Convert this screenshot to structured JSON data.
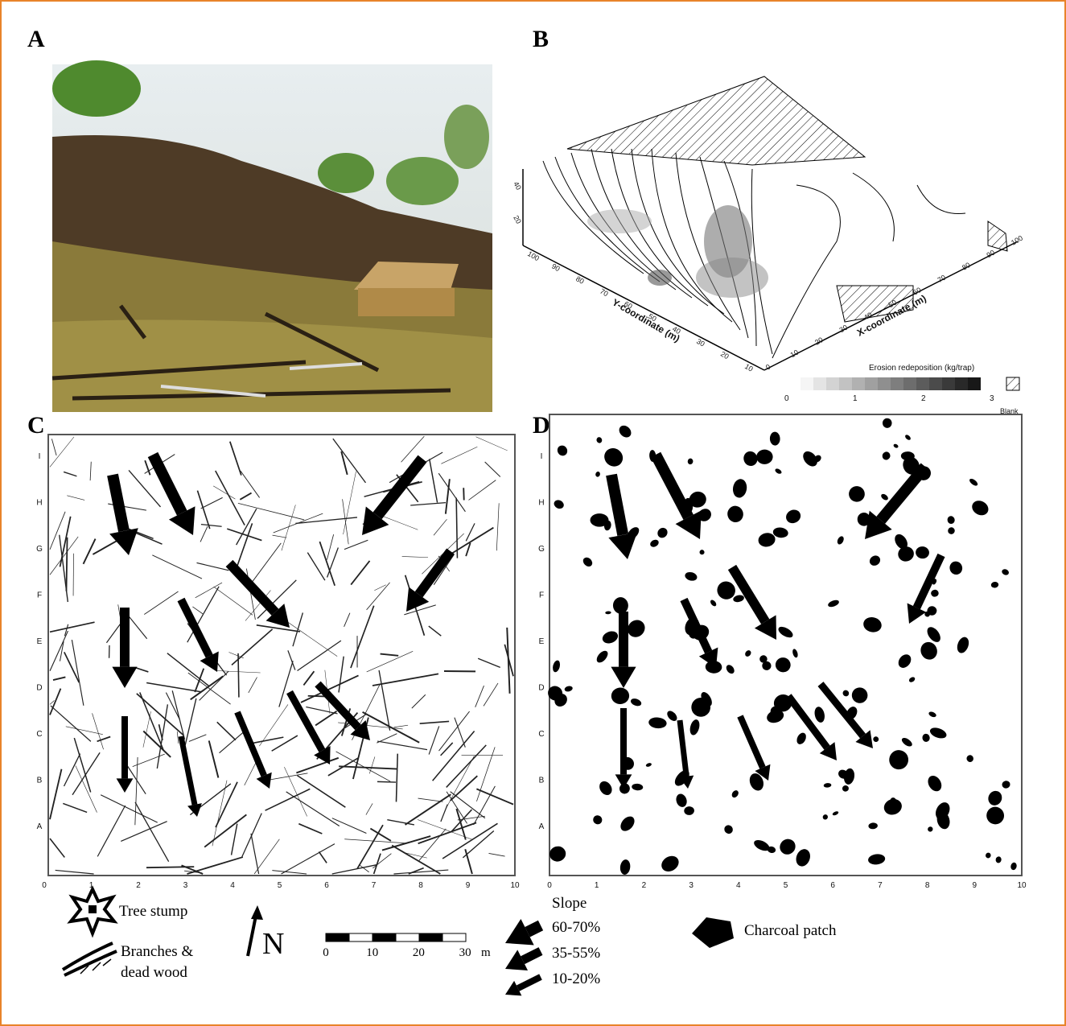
{
  "panel_labels": [
    "A",
    "B",
    "C",
    "D"
  ],
  "panel_b": {
    "y_axis_title": "Y-coordinate (m)",
    "x_axis_title": "X-coordinate (m)",
    "y_ticks": [
      "100",
      "90",
      "80",
      "70",
      "60",
      "50",
      "40",
      "30",
      "20",
      "10"
    ],
    "x_ticks": [
      "0",
      "10",
      "20",
      "30",
      "40",
      "50",
      "60",
      "70",
      "80",
      "90",
      "100"
    ],
    "z_ticks": [
      "40",
      "20"
    ],
    "colorbar_title": "Erosion redeposition (kg/trap)",
    "colorbar_ticks": [
      "0",
      "1",
      "2",
      "3"
    ],
    "blank_label": "Blank"
  },
  "map_grid": {
    "rows": [
      "A",
      "B",
      "C",
      "D",
      "E",
      "F",
      "G",
      "H",
      "I"
    ],
    "columns": [
      "0",
      "1",
      "2",
      "3",
      "4",
      "5",
      "6",
      "7",
      "8",
      "9",
      "10"
    ]
  },
  "legend": {
    "tree_stump": "Tree stump",
    "branches_line1": "Branches &",
    "branches_line2": "dead wood",
    "north": "N",
    "scale_ticks": [
      "0",
      "10",
      "20",
      "30"
    ],
    "scale_unit": "m",
    "slope_title": "Slope",
    "slope_classes": [
      "60-70%",
      "35-55%",
      "10-20%"
    ],
    "charcoal": "Charcoal patch"
  }
}
